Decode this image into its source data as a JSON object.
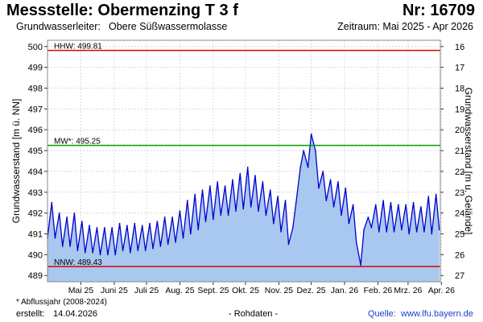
{
  "header": {
    "title": "Messstelle: Obermenzing T 3 f",
    "number": "Nr: 16709",
    "aquifer_label": "Grundwasserleiter:",
    "aquifer_value": "Obere Süßwassermolasse",
    "period": "Zeitraum: Mai 2025 - Apr 2026"
  },
  "footer": {
    "footnote": "* Abflussjahr (2008-2024)",
    "created_label": "erstellt:",
    "created_value": "14.04.2026",
    "raw_data": "- Rohdaten -",
    "source_label": "Quelle:",
    "source_url": "www.lfu.bayern.de"
  },
  "colors": {
    "fill": "#a8c8f0",
    "line": "#0000cc",
    "hhw": "#e00000",
    "mw": "#00a000",
    "nnw": "#e00000",
    "grid": "#d8d8d8"
  },
  "chart_data": {
    "type": "area",
    "title": "",
    "ylabel": "Grundwasserstand [m ü. NN]",
    "y2label": "Grundwasserstand [m u. Gelände]",
    "ylim": [
      488.7,
      500.3
    ],
    "yticks": [
      489,
      490,
      491,
      492,
      493,
      494,
      495,
      496,
      497,
      498,
      499,
      500
    ],
    "y2ticks": [
      16,
      17,
      18,
      19,
      20,
      21,
      22,
      23,
      24,
      25,
      26,
      27
    ],
    "y2_offset": 516,
    "xlim": [
      "2025-04-14",
      "2026-04-14"
    ],
    "xticks": [
      {
        "date": "2025-05-15",
        "label": "Mai 25"
      },
      {
        "date": "2025-06-15",
        "label": "Juni 25"
      },
      {
        "date": "2025-07-15",
        "label": "Juli 25"
      },
      {
        "date": "2025-08-15",
        "label": "Aug. 25"
      },
      {
        "date": "2025-09-15",
        "label": "Sept. 25"
      },
      {
        "date": "2025-10-15",
        "label": "Okt. 25"
      },
      {
        "date": "2025-11-15",
        "label": "Nov. 25"
      },
      {
        "date": "2025-12-15",
        "label": "Dez. 25"
      },
      {
        "date": "2026-01-15",
        "label": "Jan. 26"
      },
      {
        "date": "2026-02-15",
        "label": "Feb. 26"
      },
      {
        "date": "2026-03-15",
        "label": "Mrz. 26"
      },
      {
        "date": "2026-04-15",
        "label": "Apr. 26"
      }
    ],
    "reference_lines": [
      {
        "name": "HHW",
        "label": "HHW: 499.81",
        "value": 499.81,
        "color": "#e00000"
      },
      {
        "name": "MW",
        "label": "MW*: 495.25",
        "value": 495.25,
        "color": "#00a000"
      },
      {
        "name": "NNW",
        "label": "NNW: 489.43",
        "value": 489.43,
        "color": "#e00000"
      }
    ],
    "series": [
      {
        "x": [
          "2025-04-14",
          "2025-04-18",
          "2025-04-21",
          "2025-04-25",
          "2025-04-28",
          "2025-05-02",
          "2025-05-05",
          "2025-05-09",
          "2025-05-12",
          "2025-05-16",
          "2025-05-19",
          "2025-05-23",
          "2025-05-26",
          "2025-05-30",
          "2025-06-02",
          "2025-06-06",
          "2025-06-09",
          "2025-06-13",
          "2025-06-16",
          "2025-06-20",
          "2025-06-23",
          "2025-06-27",
          "2025-06-30",
          "2025-07-04",
          "2025-07-07",
          "2025-07-11",
          "2025-07-14",
          "2025-07-18",
          "2025-07-21",
          "2025-07-25",
          "2025-07-28",
          "2025-08-01",
          "2025-08-04",
          "2025-08-08",
          "2025-08-11",
          "2025-08-15",
          "2025-08-18",
          "2025-08-22",
          "2025-08-25",
          "2025-08-29",
          "2025-09-01",
          "2025-09-05",
          "2025-09-08",
          "2025-09-12",
          "2025-09-15",
          "2025-09-19",
          "2025-09-22",
          "2025-09-26",
          "2025-09-29",
          "2025-10-03",
          "2025-10-06",
          "2025-10-10",
          "2025-10-13",
          "2025-10-17",
          "2025-10-20",
          "2025-10-24",
          "2025-10-27",
          "2025-10-31",
          "2025-11-03",
          "2025-11-07",
          "2025-11-10",
          "2025-11-14",
          "2025-11-17",
          "2025-11-21",
          "2025-11-24",
          "2025-11-28",
          "2025-12-01",
          "2025-12-05",
          "2025-12-08",
          "2025-12-12",
          "2025-12-15",
          "2025-12-19",
          "2025-12-22",
          "2025-12-26",
          "2025-12-29",
          "2026-01-02",
          "2026-01-05",
          "2026-01-09",
          "2026-01-12",
          "2026-01-16",
          "2026-01-19",
          "2026-01-23",
          "2026-01-26",
          "2026-01-30",
          "2026-02-02",
          "2026-02-06",
          "2026-02-09",
          "2026-02-13",
          "2026-02-16",
          "2026-02-20",
          "2026-02-23",
          "2026-02-27",
          "2026-03-02",
          "2026-03-06",
          "2026-03-09",
          "2026-03-13",
          "2026-03-16",
          "2026-03-20",
          "2026-03-23",
          "2026-03-27",
          "2026-03-30",
          "2026-04-03",
          "2026-04-06",
          "2026-04-10",
          "2026-04-13"
        ],
        "y": [
          490.8,
          492.5,
          490.8,
          492.0,
          490.4,
          491.8,
          490.4,
          492.0,
          490.2,
          491.6,
          490.1,
          491.4,
          490.1,
          491.3,
          490.0,
          491.3,
          490.0,
          491.3,
          490.0,
          491.5,
          490.2,
          491.4,
          490.1,
          491.5,
          490.2,
          491.4,
          490.2,
          491.5,
          490.3,
          491.6,
          490.4,
          491.8,
          490.5,
          491.8,
          490.6,
          492.1,
          490.8,
          492.6,
          491.0,
          492.9,
          491.2,
          493.1,
          491.6,
          493.3,
          491.7,
          493.5,
          491.9,
          493.3,
          491.9,
          493.6,
          492.1,
          493.9,
          492.2,
          494.2,
          492.3,
          493.8,
          492.1,
          493.5,
          491.9,
          493.1,
          491.5,
          492.8,
          491.1,
          492.6,
          490.5,
          491.3,
          492.5,
          494.2,
          495.0,
          494.2,
          495.8,
          495.0,
          493.2,
          494.0,
          492.6,
          493.6,
          492.3,
          493.5,
          491.9,
          493.2,
          491.5,
          492.4,
          490.6,
          489.5,
          491.2,
          491.8,
          491.3,
          492.4,
          491.1,
          492.6,
          491.1,
          492.5,
          491.1,
          492.4,
          491.2,
          492.4,
          491.0,
          492.5,
          491.1,
          492.3,
          491.1,
          492.8,
          491.0,
          492.9,
          491.2
        ]
      }
    ]
  }
}
